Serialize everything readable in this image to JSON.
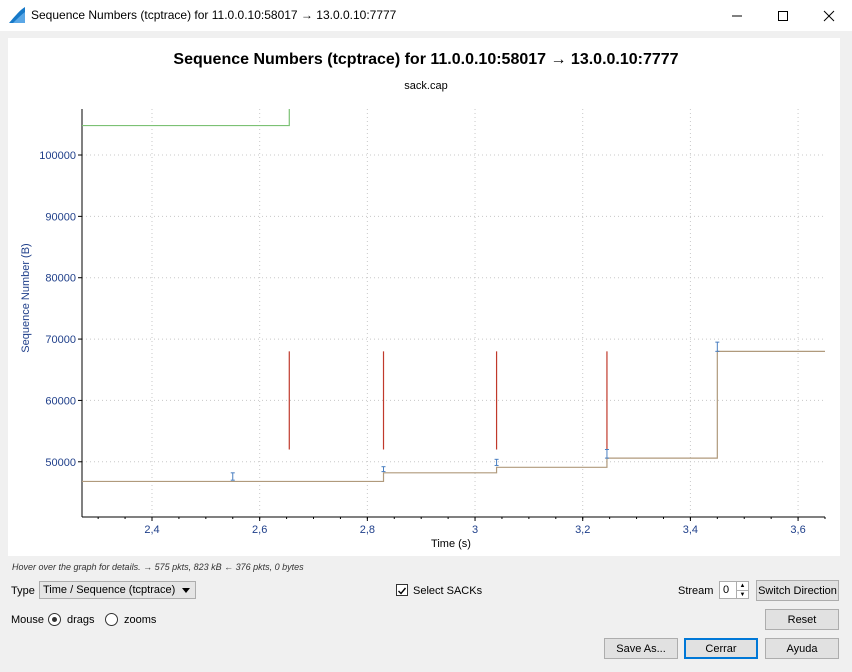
{
  "window": {
    "title": "Sequence Numbers (tcptrace) for 11.0.0.10:58017 → 13.0.0.10:7777",
    "minimize_icon": "minimize-icon",
    "maximize_icon": "maximize-icon",
    "close_icon": "close-icon"
  },
  "hint": "Hover over the graph for details. → 575 pkts, 823 kB ← 376 pkts, 0 bytes",
  "controls": {
    "type_label": "Type",
    "type_value": "Time / Sequence (tcptrace)",
    "select_sacks_label": "Select SACKs",
    "select_sacks_checked": true,
    "stream_label": "Stream",
    "stream_value": "0",
    "switch_direction": "Switch Direction",
    "reset": "Reset",
    "mouse_label": "Mouse",
    "drags_label": "drags",
    "zooms_label": "zooms",
    "mouse_mode": "drags",
    "save_as": "Save As...",
    "close": "Cerrar",
    "help": "Ayuda"
  },
  "chart_data": {
    "type": "line",
    "title": "Sequence Numbers (tcptrace) for 11.0.0.10:58017 → 13.0.0.10:7777",
    "subtitle": "sack.cap",
    "xlabel": "Time (s)",
    "ylabel": "Sequence Number (B)",
    "xlim": [
      2.27,
      3.65
    ],
    "ylim": [
      41000,
      107500
    ],
    "xticks": [
      "2,4",
      "2,6",
      "2,8",
      "3",
      "3,2",
      "3,4",
      "3,6"
    ],
    "xtick_values": [
      2.4,
      2.6,
      2.8,
      3.0,
      3.2,
      3.4,
      3.6
    ],
    "yticks": [
      "50000",
      "60000",
      "70000",
      "80000",
      "90000",
      "100000"
    ],
    "ytick_values": [
      50000,
      60000,
      70000,
      80000,
      90000,
      100000
    ],
    "grid": true,
    "colors": {
      "ack": "#b09a7c",
      "window": "#7cc174",
      "sack": "#c0392b",
      "seq": "#4a7fc1",
      "axis_text": "#1f3f8a"
    },
    "ack_line": [
      [
        2.27,
        46800
      ],
      [
        2.83,
        46800
      ],
      [
        2.83,
        48200
      ],
      [
        3.04,
        48200
      ],
      [
        3.04,
        49100
      ],
      [
        3.245,
        49100
      ],
      [
        3.245,
        50600
      ],
      [
        3.45,
        50600
      ],
      [
        3.45,
        68000
      ],
      [
        3.65,
        68000
      ]
    ],
    "window_line": [
      [
        2.27,
        104800
      ],
      [
        2.655,
        104800
      ],
      [
        2.655,
        107500
      ]
    ],
    "sack_lines": [
      {
        "x": 2.655,
        "y0": 52000,
        "y1": 68000
      },
      {
        "x": 2.83,
        "y0": 52000,
        "y1": 68000
      },
      {
        "x": 3.04,
        "y0": 52000,
        "y1": 68000
      },
      {
        "x": 3.245,
        "y0": 52000,
        "y1": 68000
      }
    ],
    "seq_marks": [
      {
        "x": 2.55,
        "y0": 47000,
        "y1": 48200
      },
      {
        "x": 2.83,
        "y0": 48400,
        "y1": 49200
      },
      {
        "x": 3.04,
        "y0": 49400,
        "y1": 50400
      },
      {
        "x": 3.245,
        "y0": 50600,
        "y1": 52000
      },
      {
        "x": 3.45,
        "y0": 68000,
        "y1": 69500
      }
    ]
  }
}
